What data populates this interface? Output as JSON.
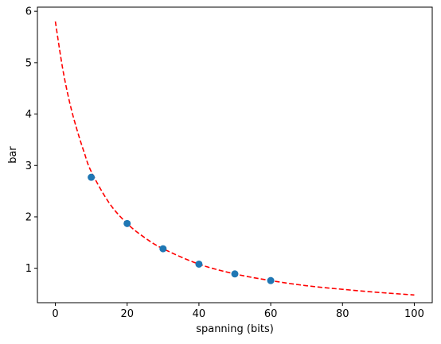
{
  "chart_data": {
    "type": "scatter",
    "title": "",
    "xlabel": "spanning (bits)",
    "ylabel": "bar",
    "xlim": [
      -5,
      105
    ],
    "ylim": [
      0.33,
      6.08
    ],
    "xticks": [
      0,
      20,
      40,
      60,
      80,
      100
    ],
    "yticks": [
      1,
      2,
      3,
      4,
      5,
      6
    ],
    "grid": false,
    "series": [
      {
        "kind": "scatter",
        "color": "#1f77b4",
        "x": [
          10,
          20,
          30,
          40,
          50,
          60
        ],
        "y": [
          2.77,
          1.87,
          1.38,
          1.08,
          0.89,
          0.76
        ]
      },
      {
        "kind": "fit-line",
        "color": "#ff0000",
        "style": "dashed",
        "x": [
          0,
          2,
          4,
          6,
          8,
          10,
          15,
          20,
          25,
          30,
          40,
          50,
          60,
          70,
          80,
          90,
          100
        ],
        "y": [
          5.8,
          4.9,
          4.22,
          3.7,
          3.26,
          2.88,
          2.27,
          1.87,
          1.59,
          1.38,
          1.08,
          0.89,
          0.76,
          0.66,
          0.59,
          0.53,
          0.48
        ]
      }
    ]
  }
}
